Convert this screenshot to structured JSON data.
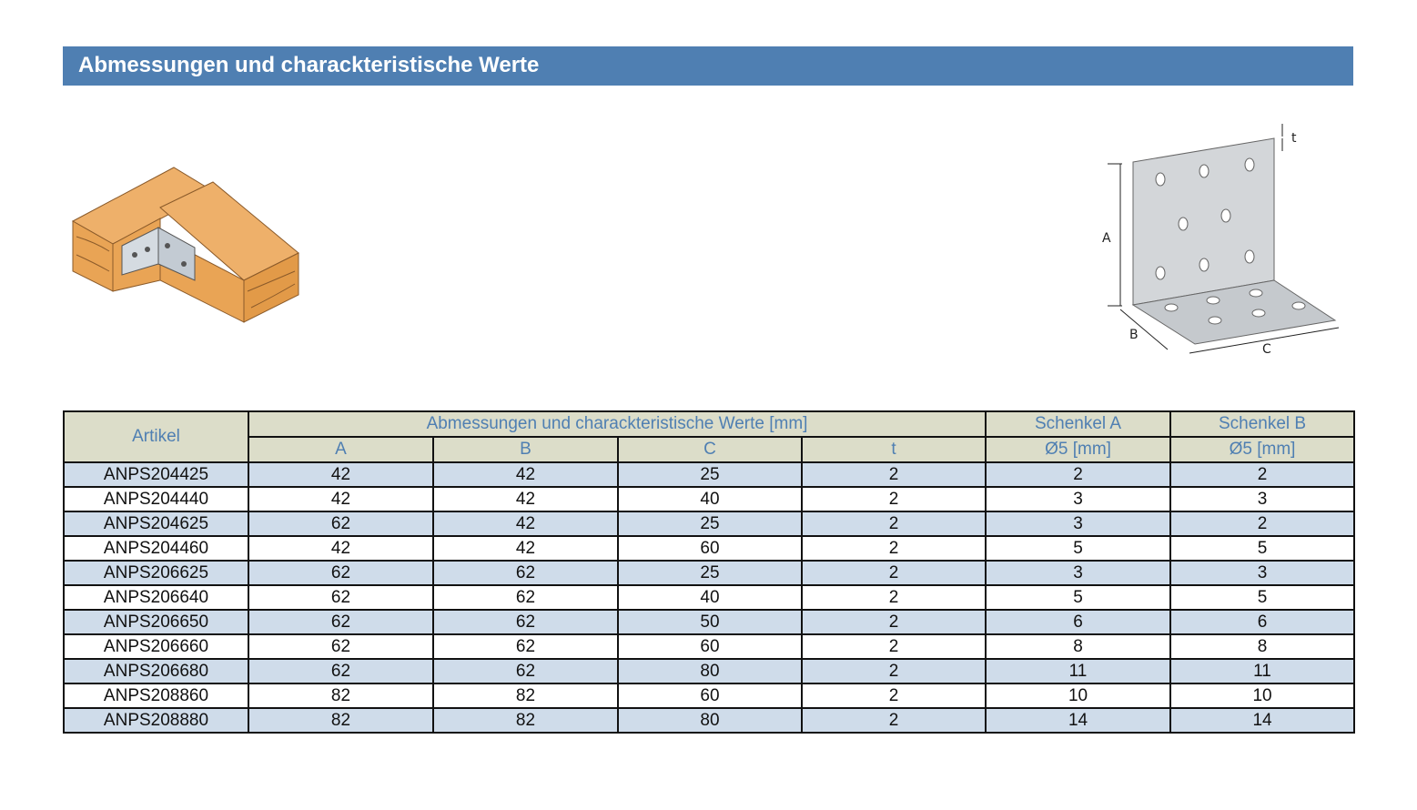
{
  "header": {
    "title": "Abmessungen und charackteristische Werte"
  },
  "illustrations": {
    "left": "timber-joint-with-angle-bracket",
    "right": {
      "name": "angle-bracket-dimension-drawing",
      "labels": {
        "a": "A",
        "b": "B",
        "c": "C",
        "t": "t"
      }
    }
  },
  "table": {
    "col_artikel": "Artikel",
    "group_dims": "Abmessungen und charackteristische Werte [mm]",
    "group_schenkel_a": "Schenkel A",
    "group_schenkel_b": "Schenkel B",
    "sub": {
      "a": "A",
      "b": "B",
      "c": "C",
      "t": "t",
      "hole_a": "Ø5 [mm]",
      "hole_b": "Ø5 [mm]"
    },
    "rows": [
      {
        "artikel": "ANPS204425",
        "a": "42",
        "b": "42",
        "c": "25",
        "t": "2",
        "sa": "2",
        "sb": "2"
      },
      {
        "artikel": "ANPS204440",
        "a": "42",
        "b": "42",
        "c": "40",
        "t": "2",
        "sa": "3",
        "sb": "3"
      },
      {
        "artikel": "ANPS204625",
        "a": "62",
        "b": "42",
        "c": "25",
        "t": "2",
        "sa": "3",
        "sb": "2"
      },
      {
        "artikel": "ANPS204460",
        "a": "42",
        "b": "42",
        "c": "60",
        "t": "2",
        "sa": "5",
        "sb": "5"
      },
      {
        "artikel": "ANPS206625",
        "a": "62",
        "b": "62",
        "c": "25",
        "t": "2",
        "sa": "3",
        "sb": "3"
      },
      {
        "artikel": "ANPS206640",
        "a": "62",
        "b": "62",
        "c": "40",
        "t": "2",
        "sa": "5",
        "sb": "5"
      },
      {
        "artikel": "ANPS206650",
        "a": "62",
        "b": "62",
        "c": "50",
        "t": "2",
        "sa": "6",
        "sb": "6"
      },
      {
        "artikel": "ANPS206660",
        "a": "62",
        "b": "62",
        "c": "60",
        "t": "2",
        "sa": "8",
        "sb": "8"
      },
      {
        "artikel": "ANPS206680",
        "a": "62",
        "b": "62",
        "c": "80",
        "t": "2",
        "sa": "11",
        "sb": "11"
      },
      {
        "artikel": "ANPS208860",
        "a": "82",
        "b": "82",
        "c": "60",
        "t": "2",
        "sa": "10",
        "sb": "10"
      },
      {
        "artikel": "ANPS208880",
        "a": "82",
        "b": "82",
        "c": "80",
        "t": "2",
        "sa": "14",
        "sb": "14"
      }
    ]
  }
}
